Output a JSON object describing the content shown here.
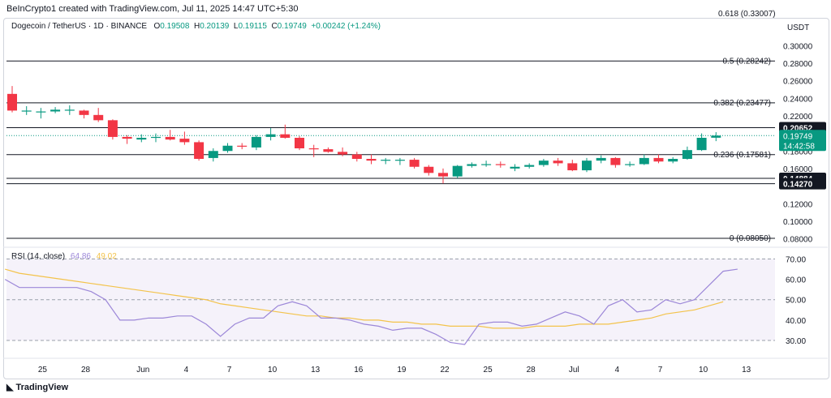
{
  "header": {
    "credit": "BeInCrypto1 created with TradingView.com, Jul 11, 2025 14:47 UTC+5:30"
  },
  "symbol": {
    "title": "Dogecoin / TetherUS · 1D · BINANCE",
    "o_label": "O",
    "o": "0.19508",
    "h_label": "H",
    "h": "0.20139",
    "l_label": "L",
    "l": "0.19115",
    "c_label": "C",
    "c": "0.19749",
    "change": "+0.00242 (+1.24%)"
  },
  "price_axis": {
    "currency": "USDT",
    "ticks": [
      "0.30000",
      "0.28000",
      "0.26000",
      "0.24000",
      "0.22000",
      "0.20000",
      "0.18000",
      "0.16000",
      "0.14000",
      "0.12000",
      "0.10000",
      "0.08000"
    ],
    "tick_values": [
      0.3,
      0.28,
      0.26,
      0.24,
      0.22,
      0.2,
      0.18,
      0.16,
      0.14,
      0.12,
      0.1,
      0.08
    ],
    "range": [
      0.075,
      0.315
    ],
    "badges": [
      {
        "text": "0.20652",
        "value": 0.20652,
        "color": "#131722"
      },
      {
        "text": "0.14884",
        "value": 0.14884,
        "color": "#131722"
      },
      {
        "text": "0.14270",
        "value": 0.1427,
        "color": "#131722"
      }
    ],
    "current": {
      "price": "0.19749",
      "countdown": "14:42:58",
      "value": 0.19749,
      "color": "#089981"
    },
    "top_label": "0.618 (0.33007)"
  },
  "fib_levels": [
    {
      "label": "0.5 (0.28242)",
      "value": 0.28242
    },
    {
      "label": "0.382 (0.23477)",
      "value": 0.23477
    },
    {
      "label": "0.236 (0.17581)",
      "value": 0.17581
    },
    {
      "label": "0 (0.08050)",
      "value": 0.0805
    }
  ],
  "support_lines": [
    0.20652,
    0.14884,
    0.1427
  ],
  "chart_data": {
    "type": "candlestick",
    "x_ticks": [
      "25",
      "28",
      "Jun",
      "4",
      "7",
      "10",
      "13",
      "16",
      "19",
      "22",
      "25",
      "28",
      "Jul",
      "4",
      "7",
      "10",
      "13"
    ],
    "x_tick_index": [
      2,
      5,
      9,
      12,
      15,
      18,
      21,
      24,
      27,
      30,
      33,
      36,
      39,
      42,
      45,
      48,
      51
    ],
    "candles": [
      {
        "o": 0.245,
        "h": 0.254,
        "l": 0.224,
        "c": 0.226
      },
      {
        "o": 0.226,
        "h": 0.231,
        "l": 0.221,
        "c": 0.226
      },
      {
        "o": 0.225,
        "h": 0.229,
        "l": 0.217,
        "c": 0.225
      },
      {
        "o": 0.225,
        "h": 0.23,
        "l": 0.223,
        "c": 0.227
      },
      {
        "o": 0.226,
        "h": 0.232,
        "l": 0.221,
        "c": 0.227
      },
      {
        "o": 0.226,
        "h": 0.227,
        "l": 0.217,
        "c": 0.221
      },
      {
        "o": 0.221,
        "h": 0.229,
        "l": 0.213,
        "c": 0.215
      },
      {
        "o": 0.215,
        "h": 0.216,
        "l": 0.193,
        "c": 0.196
      },
      {
        "o": 0.196,
        "h": 0.198,
        "l": 0.188,
        "c": 0.194
      },
      {
        "o": 0.193,
        "h": 0.199,
        "l": 0.19,
        "c": 0.195
      },
      {
        "o": 0.195,
        "h": 0.2,
        "l": 0.19,
        "c": 0.196
      },
      {
        "o": 0.196,
        "h": 0.204,
        "l": 0.192,
        "c": 0.193
      },
      {
        "o": 0.194,
        "h": 0.202,
        "l": 0.187,
        "c": 0.19
      },
      {
        "o": 0.19,
        "h": 0.192,
        "l": 0.169,
        "c": 0.171
      },
      {
        "o": 0.172,
        "h": 0.183,
        "l": 0.168,
        "c": 0.18
      },
      {
        "o": 0.18,
        "h": 0.189,
        "l": 0.178,
        "c": 0.186
      },
      {
        "o": 0.186,
        "h": 0.189,
        "l": 0.182,
        "c": 0.185
      },
      {
        "o": 0.184,
        "h": 0.198,
        "l": 0.181,
        "c": 0.196
      },
      {
        "o": 0.196,
        "h": 0.206,
        "l": 0.192,
        "c": 0.199
      },
      {
        "o": 0.199,
        "h": 0.21,
        "l": 0.194,
        "c": 0.195
      },
      {
        "o": 0.195,
        "h": 0.197,
        "l": 0.181,
        "c": 0.183
      },
      {
        "o": 0.183,
        "h": 0.187,
        "l": 0.173,
        "c": 0.182
      },
      {
        "o": 0.182,
        "h": 0.184,
        "l": 0.178,
        "c": 0.179
      },
      {
        "o": 0.179,
        "h": 0.184,
        "l": 0.174,
        "c": 0.176
      },
      {
        "o": 0.176,
        "h": 0.179,
        "l": 0.168,
        "c": 0.171
      },
      {
        "o": 0.171,
        "h": 0.176,
        "l": 0.165,
        "c": 0.169
      },
      {
        "o": 0.169,
        "h": 0.172,
        "l": 0.165,
        "c": 0.17
      },
      {
        "o": 0.17,
        "h": 0.172,
        "l": 0.164,
        "c": 0.17
      },
      {
        "o": 0.17,
        "h": 0.172,
        "l": 0.16,
        "c": 0.162
      },
      {
        "o": 0.162,
        "h": 0.164,
        "l": 0.152,
        "c": 0.155
      },
      {
        "o": 0.155,
        "h": 0.16,
        "l": 0.143,
        "c": 0.151
      },
      {
        "o": 0.151,
        "h": 0.164,
        "l": 0.149,
        "c": 0.163
      },
      {
        "o": 0.163,
        "h": 0.167,
        "l": 0.161,
        "c": 0.165
      },
      {
        "o": 0.165,
        "h": 0.169,
        "l": 0.162,
        "c": 0.165
      },
      {
        "o": 0.165,
        "h": 0.168,
        "l": 0.161,
        "c": 0.164
      },
      {
        "o": 0.16,
        "h": 0.165,
        "l": 0.157,
        "c": 0.162
      },
      {
        "o": 0.162,
        "h": 0.166,
        "l": 0.16,
        "c": 0.164
      },
      {
        "o": 0.164,
        "h": 0.171,
        "l": 0.162,
        "c": 0.169
      },
      {
        "o": 0.169,
        "h": 0.172,
        "l": 0.163,
        "c": 0.166
      },
      {
        "o": 0.166,
        "h": 0.17,
        "l": 0.157,
        "c": 0.158
      },
      {
        "o": 0.158,
        "h": 0.172,
        "l": 0.156,
        "c": 0.169
      },
      {
        "o": 0.169,
        "h": 0.175,
        "l": 0.166,
        "c": 0.172
      },
      {
        "o": 0.172,
        "h": 0.173,
        "l": 0.161,
        "c": 0.164
      },
      {
        "o": 0.164,
        "h": 0.168,
        "l": 0.162,
        "c": 0.165
      },
      {
        "o": 0.165,
        "h": 0.176,
        "l": 0.164,
        "c": 0.172
      },
      {
        "o": 0.172,
        "h": 0.176,
        "l": 0.166,
        "c": 0.168
      },
      {
        "o": 0.168,
        "h": 0.173,
        "l": 0.166,
        "c": 0.171
      },
      {
        "o": 0.171,
        "h": 0.185,
        "l": 0.17,
        "c": 0.181
      },
      {
        "o": 0.181,
        "h": 0.2,
        "l": 0.18,
        "c": 0.195
      },
      {
        "o": 0.1951,
        "h": 0.2014,
        "l": 0.1912,
        "c": 0.1975
      }
    ],
    "up_color": "#089981",
    "down_color": "#f23645"
  },
  "rsi": {
    "label": "RSI (14, close)",
    "value": "64.86",
    "ma_value": "49.02",
    "ticks": [
      "70.00",
      "60.00",
      "50.00",
      "40.00",
      "30.00"
    ],
    "tick_values": [
      70,
      60,
      50,
      40,
      30
    ],
    "range": [
      26,
      73
    ],
    "band": [
      30,
      70
    ],
    "rsi_series": [
      60,
      56,
      56,
      56,
      56,
      56,
      54,
      50,
      40,
      40,
      41,
      41,
      42,
      42,
      38,
      32,
      38,
      41,
      41,
      47,
      49,
      47,
      41,
      41,
      40,
      38,
      37,
      35,
      36,
      36,
      33,
      29,
      28,
      38,
      39,
      39,
      37,
      38,
      41,
      44,
      42,
      38,
      47,
      50,
      44,
      45,
      50,
      48,
      50,
      57,
      64,
      65
    ],
    "ma_series": [
      65,
      63,
      62,
      61,
      60,
      59,
      58,
      57,
      56,
      55,
      54,
      53,
      52,
      51,
      50,
      48,
      47,
      46,
      45,
      44,
      43,
      42,
      42,
      41,
      41,
      40,
      40,
      39,
      39,
      38,
      38,
      37,
      37,
      37,
      36,
      36,
      36,
      37,
      37,
      37,
      38,
      38,
      38,
      39,
      40,
      41,
      43,
      44,
      45,
      47,
      49
    ],
    "rsi_color": "#9c87d8",
    "ma_color": "#f3c34b"
  },
  "footer": {
    "brand": "TradingView"
  }
}
